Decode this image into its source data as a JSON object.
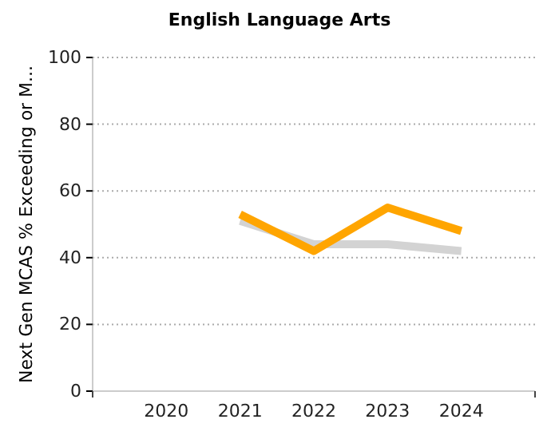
{
  "chart_data": {
    "type": "line",
    "title": "English Language Arts",
    "ylabel": "Next Gen MCAS % Exceeding or M...",
    "categories": [
      "2020",
      "2021",
      "2022",
      "2023",
      "2024"
    ],
    "series": [
      {
        "color": "#d3d3d3",
        "values": [
          null,
          51,
          44,
          44,
          42
        ]
      },
      {
        "color": "#ffa500",
        "values": [
          null,
          53,
          42,
          55,
          48
        ]
      }
    ],
    "ylim": [
      0,
      100
    ],
    "yticks": [
      0,
      20,
      40,
      60,
      80,
      100
    ],
    "grid": "y",
    "marker": "none",
    "line_style": "solid"
  }
}
